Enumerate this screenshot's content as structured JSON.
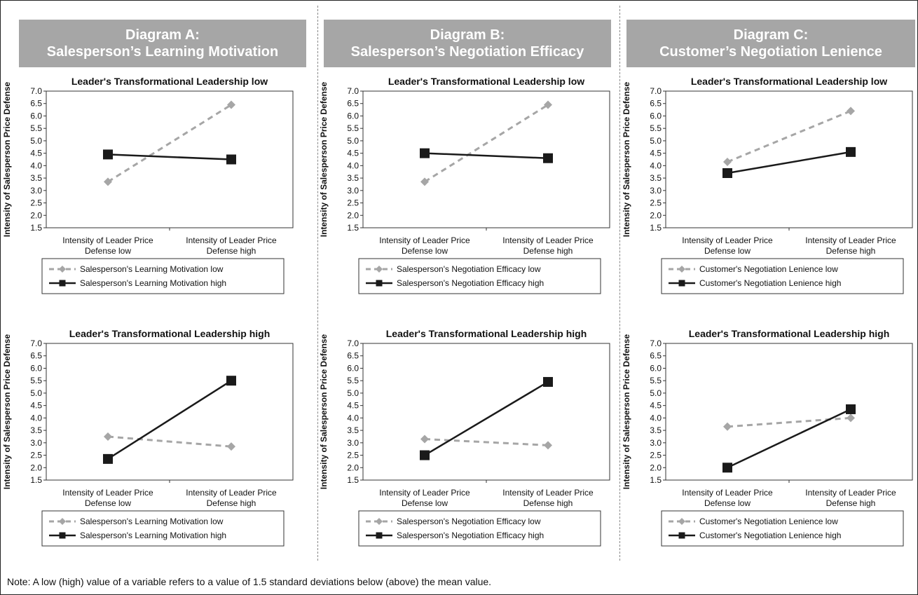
{
  "panels": [
    {
      "heading_line1": "Diagram A:",
      "heading_line2": "Salesperson’s Learning Motivation",
      "charts": [
        {
          "title": "Leader's Transformational Leadership low",
          "legend_low": "Salesperson's Learning Motivation low",
          "legend_high": "Salesperson's Learning Motivation high"
        },
        {
          "title": "Leader's Transformational Leadership high",
          "legend_low": "Salesperson's Learning Motivation low",
          "legend_high": "Salesperson's Learning Motivation high"
        }
      ]
    },
    {
      "heading_line1": "Diagram B:",
      "heading_line2": "Salesperson’s Negotiation Efficacy",
      "charts": [
        {
          "title": "Leader's Transformational Leadership low",
          "legend_low": "Salesperson's Negotiation Efficacy low",
          "legend_high": "Salesperson's Negotiation Efficacy high"
        },
        {
          "title": "Leader's Transformational Leadership high",
          "legend_low": "Salesperson's Negotiation Efficacy low",
          "legend_high": "Salesperson's Negotiation Efficacy high"
        }
      ]
    },
    {
      "heading_line1": "Diagram C:",
      "heading_line2": "Customer’s Negotiation Lenience",
      "charts": [
        {
          "title": "Leader's Transformational Leadership low",
          "legend_low": "Customer's Negotiation Lenience low",
          "legend_high": "Customer's Negotiation Lenience high"
        },
        {
          "title": "Leader's Transformational Leadership high",
          "legend_low": "Customer's Negotiation Lenience low",
          "legend_high": "Customer's Negotiation Lenience high"
        }
      ]
    }
  ],
  "note": "Note: A low (high) value of a variable refers to a value of 1.5 standard deviations below (above) the mean value.",
  "colors": {
    "low_series": "#a6a6a6",
    "high_series": "#1a1a1a",
    "header_bg": "#a6a6a6"
  },
  "chart_data": [
    {
      "type": "line",
      "title": "Leader's Transformational Leadership low",
      "panel": "Diagram A",
      "ylabel": "Intensity of Salesperson Price Defense",
      "categories": [
        "Intensity of Leader Price Defense low",
        "Intensity of Leader Price Defense high"
      ],
      "ylim": [
        1.5,
        7.0
      ],
      "yticks": [
        "1.5",
        "2.0",
        "2.5",
        "3.0",
        "3.5",
        "4.0",
        "4.5",
        "5.0",
        "5.5",
        "6.0",
        "6.5",
        "7.0"
      ],
      "series": [
        {
          "name": "Salesperson's Learning Motivation low",
          "values": [
            3.35,
            6.45
          ],
          "style": "dashed-diamond"
        },
        {
          "name": "Salesperson's Learning Motivation high",
          "values": [
            4.45,
            4.25
          ],
          "style": "solid-square"
        }
      ]
    },
    {
      "type": "line",
      "title": "Leader's Transformational Leadership high",
      "panel": "Diagram A",
      "ylabel": "Intensity of Salesperson Price Defense",
      "categories": [
        "Intensity of Leader Price Defense low",
        "Intensity of Leader Price Defense high"
      ],
      "ylim": [
        1.5,
        7.0
      ],
      "yticks": [
        "1.5",
        "2.0",
        "2.5",
        "3.0",
        "3.5",
        "4.0",
        "4.5",
        "5.0",
        "5.5",
        "6.0",
        "6.5",
        "7.0"
      ],
      "series": [
        {
          "name": "Salesperson's Learning Motivation low",
          "values": [
            3.25,
            2.85
          ],
          "style": "dashed-diamond"
        },
        {
          "name": "Salesperson's Learning Motivation high",
          "values": [
            2.35,
            5.5
          ],
          "style": "solid-square"
        }
      ]
    },
    {
      "type": "line",
      "title": "Leader's Transformational Leadership low",
      "panel": "Diagram B",
      "ylabel": "Intensity of Salesperson Price Defense",
      "categories": [
        "Intensity of Leader Price Defense low",
        "Intensity of Leader Price Defense high"
      ],
      "ylim": [
        1.5,
        7.0
      ],
      "yticks": [
        "1.5",
        "2.0",
        "2.5",
        "3.0",
        "3.5",
        "4.0",
        "4.5",
        "5.0",
        "5.5",
        "6.0",
        "6.5",
        "7.0"
      ],
      "series": [
        {
          "name": "Salesperson's Negotiation Efficacy low",
          "values": [
            3.35,
            6.45
          ],
          "style": "dashed-diamond"
        },
        {
          "name": "Salesperson's Negotiation Efficacy high",
          "values": [
            4.5,
            4.3
          ],
          "style": "solid-square"
        }
      ]
    },
    {
      "type": "line",
      "title": "Leader's Transformational Leadership high",
      "panel": "Diagram B",
      "ylabel": "Intensity of Salesperson Price Defense",
      "categories": [
        "Intensity of Leader Price Defense low",
        "Intensity of Leader Price Defense high"
      ],
      "ylim": [
        1.5,
        7.0
      ],
      "yticks": [
        "1.5",
        "2.0",
        "2.5",
        "3.0",
        "3.5",
        "4.0",
        "4.5",
        "5.0",
        "5.5",
        "6.0",
        "6.5",
        "7.0"
      ],
      "series": [
        {
          "name": "Salesperson's Negotiation Efficacy low",
          "values": [
            3.15,
            2.9
          ],
          "style": "dashed-diamond"
        },
        {
          "name": "Salesperson's Negotiation Efficacy high",
          "values": [
            2.5,
            5.45
          ],
          "style": "solid-square"
        }
      ]
    },
    {
      "type": "line",
      "title": "Leader's Transformational Leadership low",
      "panel": "Diagram C",
      "ylabel": "Intensity of Salesperson Price Defense",
      "categories": [
        "Intensity of Leader Price Defense low",
        "Intensity of Leader Price Defense high"
      ],
      "ylim": [
        1.5,
        7.0
      ],
      "yticks": [
        "1.5",
        "2.0",
        "2.5",
        "3.0",
        "3.5",
        "4.0",
        "4.5",
        "5.0",
        "5.5",
        "6.0",
        "6.5",
        "7.0"
      ],
      "series": [
        {
          "name": "Customer's Negotiation Lenience low",
          "values": [
            4.15,
            6.2
          ],
          "style": "dashed-diamond"
        },
        {
          "name": "Customer's Negotiation Lenience high",
          "values": [
            3.7,
            4.55
          ],
          "style": "solid-square"
        }
      ]
    },
    {
      "type": "line",
      "title": "Leader's Transformational Leadership high",
      "panel": "Diagram C",
      "ylabel": "Intensity of Salesperson Price Defense",
      "categories": [
        "Intensity of Leader Price Defense low",
        "Intensity of Leader Price Defense high"
      ],
      "ylim": [
        1.5,
        7.0
      ],
      "yticks": [
        "1.5",
        "2.0",
        "2.5",
        "3.0",
        "3.5",
        "4.0",
        "4.5",
        "5.0",
        "5.5",
        "6.0",
        "6.5",
        "7.0"
      ],
      "series": [
        {
          "name": "Customer's Negotiation Lenience low",
          "values": [
            3.65,
            4.0
          ],
          "style": "dashed-diamond"
        },
        {
          "name": "Customer's Negotiation Lenience high",
          "values": [
            2.0,
            4.35
          ],
          "style": "solid-square"
        }
      ]
    }
  ]
}
